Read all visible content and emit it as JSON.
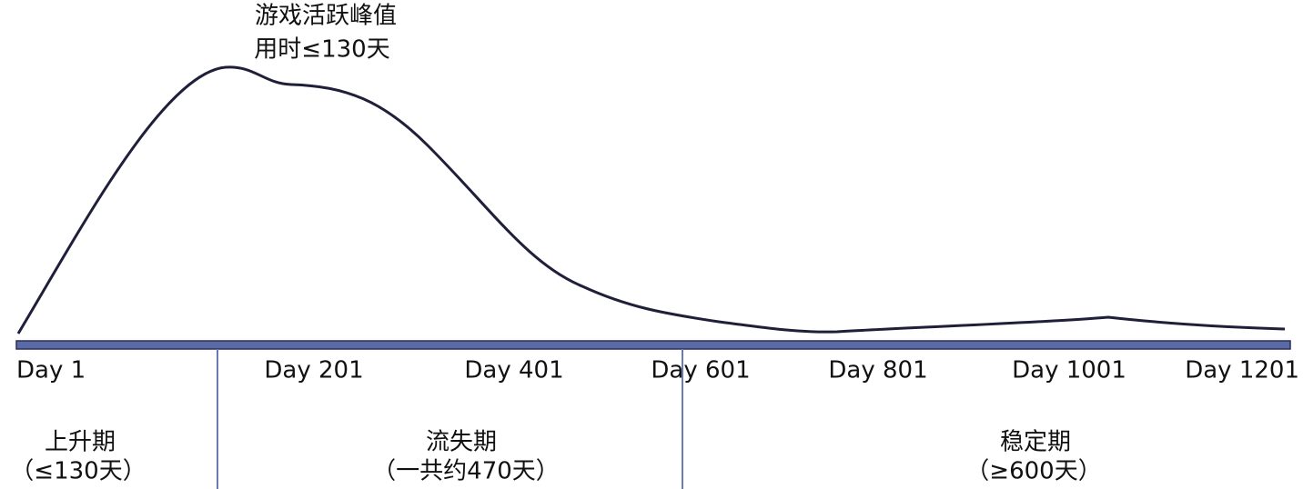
{
  "peak_label": {
    "title": "游戏活跃峰值",
    "duration": "用时≤130天"
  },
  "timeline": {
    "ticks": [
      "Day 1",
      "Day 201",
      "Day 401",
      "Day 601",
      "Day 801",
      "Day 1001",
      "Day 1201"
    ]
  },
  "phases": [
    {
      "name": "上升期",
      "duration": "（≤130天）"
    },
    {
      "name": "流失期",
      "duration": "（一共约470天）"
    },
    {
      "name": "稳定期",
      "duration": "（≥600天）"
    }
  ]
}
